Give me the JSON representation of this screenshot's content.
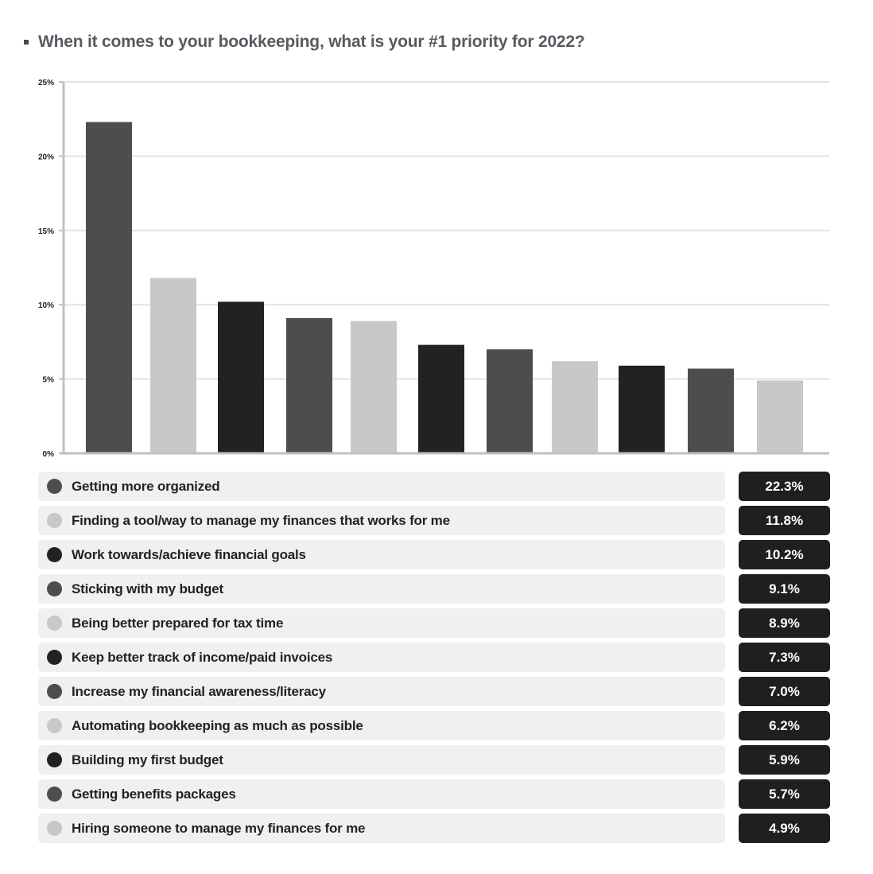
{
  "title": "When it comes to your bookkeeping, what is your #1 priority for 2022?",
  "colors": {
    "dark_gray": "#4d4d4d",
    "light_gray": "#c8c8c8",
    "black": "#222222",
    "value_box": "#1f1f1f",
    "label_box": "#f0f0f0"
  },
  "chart_data": {
    "type": "bar",
    "title": "When it comes to your bookkeeping, what is your #1 priority for 2022?",
    "xlabel": "",
    "ylabel": "",
    "ylim": [
      0,
      25
    ],
    "yticks": [
      "0%",
      "5%",
      "10%",
      "15%",
      "20%",
      "25%"
    ],
    "ytick_values": [
      0,
      5,
      10,
      15,
      20,
      25
    ],
    "grid": true,
    "legend": "below",
    "categories": [
      "Getting more organized",
      "Finding a tool/way to manage my finances that works for me",
      "Work towards/achieve financial goals",
      "Sticking with my budget",
      "Being better prepared for tax time",
      "Keep better track of income/paid invoices",
      "Increase my financial awareness/literacy",
      "Automating bookkeeping as much as possible",
      "Building my first budget",
      "Getting benefits packages",
      "Hiring someone to manage my finances for me"
    ],
    "values": [
      22.3,
      11.8,
      10.2,
      9.1,
      8.9,
      7.3,
      7.0,
      6.2,
      5.9,
      5.7,
      4.9
    ],
    "value_labels": [
      "22.3%",
      "11.8%",
      "10.2%",
      "9.1%",
      "8.9%",
      "7.3%",
      "7.0%",
      "6.2%",
      "5.9%",
      "5.7%",
      "4.9%"
    ],
    "bar_colors": [
      "#4d4d4d",
      "#c8c8c8",
      "#222222",
      "#4d4d4d",
      "#c8c8c8",
      "#222222",
      "#4d4d4d",
      "#c8c8c8",
      "#222222",
      "#4d4d4d",
      "#c8c8c8"
    ]
  }
}
